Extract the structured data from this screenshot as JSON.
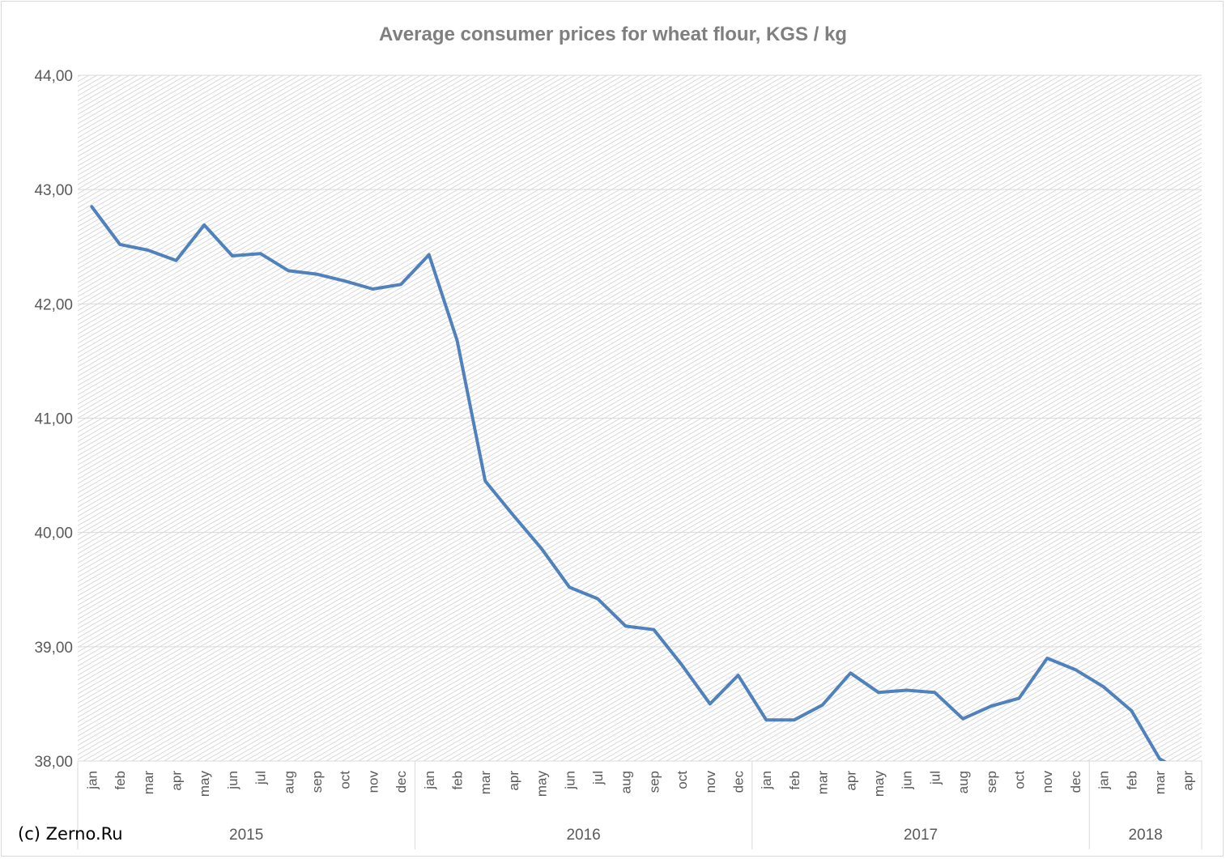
{
  "credit": "(c) Zerno.Ru",
  "colors": {
    "line": "#4f81bd",
    "grid": "#d9d9d9",
    "text": "#595959",
    "title": "#7f7f7f"
  },
  "chart_data": {
    "type": "line",
    "title": "Average consumer prices for wheat flour, KGS / kg",
    "xlabel": "",
    "ylabel": "",
    "ylim": [
      38.0,
      44.0
    ],
    "y_ticks": [
      "38,00",
      "39,00",
      "40,00",
      "41,00",
      "42,00",
      "43,00",
      "44,00"
    ],
    "grid": true,
    "legend": "none",
    "year_groups": [
      {
        "year": "2015",
        "months": [
          "jan",
          "feb",
          "mar",
          "apr",
          "may",
          "jun",
          "jul",
          "aug",
          "sep",
          "oct",
          "nov",
          "dec"
        ]
      },
      {
        "year": "2016",
        "months": [
          "jan",
          "feb",
          "mar",
          "apr",
          "may",
          "jun",
          "jul",
          "aug",
          "sep",
          "oct",
          "nov",
          "dec"
        ]
      },
      {
        "year": "2017",
        "months": [
          "jan",
          "feb",
          "mar",
          "apr",
          "may",
          "jun",
          "jul",
          "aug",
          "sep",
          "oct",
          "nov",
          "dec"
        ]
      },
      {
        "year": "2018",
        "months": [
          "jan",
          "feb",
          "mar",
          "apr"
        ]
      }
    ],
    "values": [
      42.85,
      42.52,
      42.47,
      42.38,
      42.69,
      42.42,
      42.44,
      42.29,
      42.26,
      42.2,
      42.13,
      42.17,
      42.43,
      41.68,
      40.45,
      40.15,
      39.86,
      39.52,
      39.42,
      39.18,
      39.15,
      38.84,
      38.5,
      38.75,
      38.36,
      38.36,
      38.49,
      38.77,
      38.6,
      38.62,
      38.6,
      38.37,
      38.48,
      38.55,
      38.9,
      38.8,
      38.65,
      38.44,
      38.02,
      37.88
    ]
  }
}
